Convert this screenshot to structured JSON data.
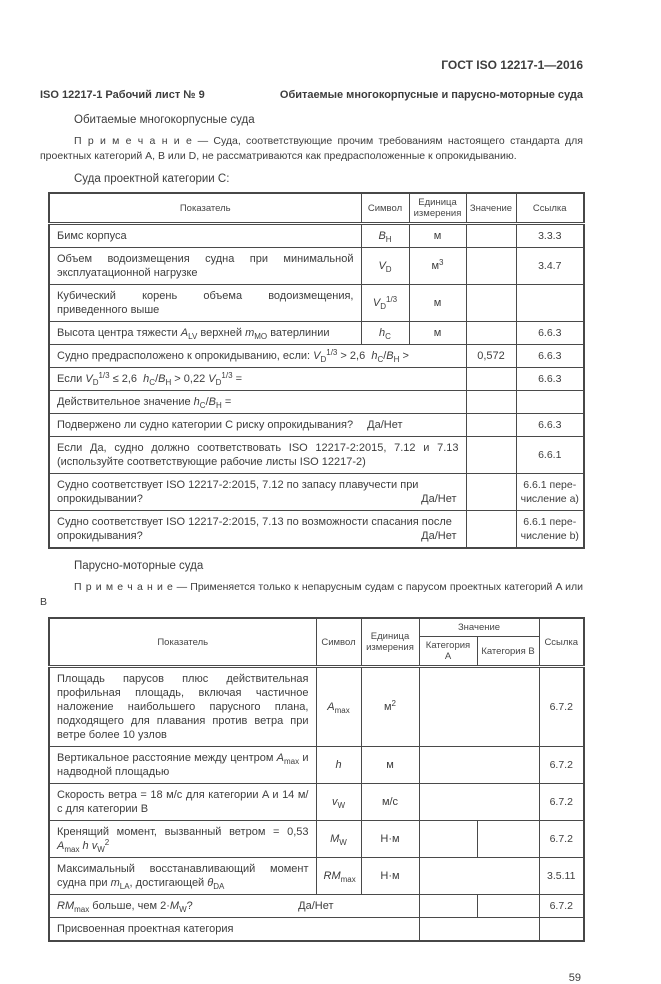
{
  "page": {
    "standard_number": "ГОСТ ISO 12217-1—2016",
    "worksheet_label": "ISO 12217-1 Рабочий лист № 9",
    "worksheet_title": "Обитаемые многокорпусные и парусно-моторные суда",
    "page_number": "59"
  },
  "multihull_section": {
    "heading": "Обитаемые многокорпусные суда",
    "note_label": "П р и м е ч а н и е",
    "note_body": "— Суда, соответствующие прочим требованиям настоящего стандарта для проектных ка­тегорий A, B или D, не рассматриваются как предрасположенные к опрокидыванию.",
    "intro": "Суда проектной категории C:",
    "table": {
      "headers": {
        "indicator": "Показатель",
        "symbol": "Символ",
        "unit": "Единица измерения",
        "value": "Значение",
        "ref": "Ссылка"
      },
      "rows": [
        {
          "indicator": "Бимс корпуса",
          "symbol": "<i>B</i><sub>H</sub>",
          "unit": "м",
          "value": "",
          "ref": "3.3.3"
        },
        {
          "indicator": "Объем водоизмещения судна при минимальной эксплуатацион­ной нагрузке",
          "symbol": "<i>V</i><sub>D</sub>",
          "unit": "м<sup>3</sup>",
          "value": "",
          "ref": "3.4.7"
        },
        {
          "indicator": "Кубический корень объема водоизмещения, приведенного выше",
          "symbol": "<i>V</i><sub>D</sub><sup>1/3</sup>",
          "unit": "м",
          "value": "",
          "ref": ""
        },
        {
          "indicator": "Высота центра тяжести <i>A</i><sub>LV</sub> верхней <i>m</i><sub>MO</sub> ватерлинии",
          "symbol": "<i>h</i><sub>C</sub>",
          "unit": "м",
          "value": "",
          "ref": "6.6.3"
        },
        {
          "indicator": "Судно предрасположено к опрокидыванию, если: <i>V</i><sub>D</sub><sup>1/3</sup> &gt; 2,6&nbsp; <i>h</i><sub>C</sub>/<i>B</i><sub>H</sub> &gt;",
          "value": "0,572",
          "ref": "6.6.3"
        },
        {
          "indicator": "Если <i>V</i><sub>D</sub><sup>1/3</sup> ≤ 2,6&nbsp; <i>h</i><sub>C</sub>/<i>B</i><sub>H</sub> &gt; 0,22 <i>V</i><sub>D</sub><sup>1/3</sup> =",
          "value": "",
          "ref": "6.6.3"
        },
        {
          "indicator": "Действительное значение <i>h</i><sub>C</sub>/<i>B</i><sub>H</sub> =",
          "value": "",
          "ref": ""
        },
        {
          "indicator": "Подвержено ли судно категории C риску опрокидывания?",
          "danet": "Да/Нет",
          "value": "",
          "ref": "6.6.3"
        },
        {
          "indicator": "Если Да, судно должно соответствовать ISO 12217-2:2015, 7.12 и 7.13 (используйте со­ответствующие рабочие листы ISO 12217-2)",
          "value": "",
          "ref": "6.6.1"
        },
        {
          "indicator": "Судно соответствует ISO 12217-2:2015, 7.12 по запасу плавучести при опрокидывании?",
          "danet": "Да/Нет",
          "value": "",
          "ref": "6.6.1 пере­числение a)"
        },
        {
          "indicator": "Судно соответствует ISO 12217-2:2015, 7.13 по возможности спасания после опроки­дывания?",
          "danet": "Да/Нет",
          "value": "",
          "ref": "6.6.1 пере­числение b)"
        }
      ]
    }
  },
  "motorsailer_section": {
    "heading": "Парусно-моторные суда",
    "note_label": "П р и м е ч а н и е",
    "note_body": "— Применяется только к непарусным судам с парусом проектных категорий A или B",
    "table": {
      "headers": {
        "indicator": "Показатель",
        "symbol": "Символ",
        "unit": "Единица измерения",
        "value_group": "Значение",
        "cat_a": "Категория A",
        "cat_b": "Категория B",
        "ref": "Ссылка"
      },
      "rows": [
        {
          "indicator": "Площадь парусов плюс действительная профильная площадь, включая частичное наложение наибольшего парусного плана, подходящего для плавания против ветра при ветре более 10 узлов",
          "symbol": "<i>A</i><sub>max</sub>",
          "unit": "м<sup>2</sup>",
          "value_a": "",
          "value_b": "",
          "ref": "6.7.2"
        },
        {
          "indicator": "Вертикальное расстояние между центром <i>A</i><sub>max</sub> и над­водной площадью",
          "symbol": "<i>h</i>",
          "unit": "м",
          "value_a": "",
          "value_b": "",
          "ref": "6.7.2"
        },
        {
          "indicator": "Скорость ветра = 18 м/с для категории A и 14 м/с для категории B",
          "symbol": "<i>v</i><sub>W</sub>",
          "unit": "м/с",
          "value_a": "",
          "value_b": "",
          "ref": "6.7.2"
        },
        {
          "indicator": "Кренящий момент, вызванный ветром = 0,53 <i>A</i><sub>max</sub> <i>h</i> <i>v</i><sub>W</sub><sup>2</sup>",
          "symbol": "<i>M</i><sub>W</sub>",
          "unit": "Н·м",
          "value_a": "",
          "value_b": "",
          "ref": "6.7.2"
        },
        {
          "indicator": "Максимальный восстанавливающий момент судна при <i>m</i><sub>LA</sub>, достигающей <i>θ</i><sub>DA</sub>",
          "symbol": "<i>RM</i><sub>max</sub>",
          "unit": "Н·м",
          "value_a": "",
          "value_b": "",
          "ref": "3.5.11"
        },
        {
          "indicator": "<i>RM</i><sub>max</sub> больше, чем 2·<i>M</i><sub>W</sub>?",
          "danet": "Да/Нет",
          "value_a": "",
          "value_b": "",
          "ref": "6.7.2"
        },
        {
          "indicator": "Присвоенная проектная категория",
          "value_a": "",
          "value_b": "",
          "ref": ""
        }
      ]
    }
  }
}
